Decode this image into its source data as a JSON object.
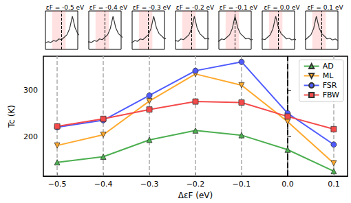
{
  "chart_data": [
    {
      "type": "line",
      "x_label": "ΔεF (eV)",
      "y_label": "Tc (K)",
      "x": [
        -0.5,
        -0.4,
        -0.3,
        -0.2,
        -0.1,
        0.0,
        0.1
      ],
      "series": [
        {
          "name": "AD",
          "color": "#4caf50",
          "marker": "triangle",
          "values": [
            145,
            157,
            193,
            213,
            203,
            172,
            126
          ]
        },
        {
          "name": "ML",
          "color": "#ffa92e",
          "marker": "triangle-down",
          "values": [
            181,
            204,
            276,
            334,
            310,
            232,
            143
          ]
        },
        {
          "name": "FSR",
          "color": "#4f5bff",
          "marker": "circle",
          "values": [
            220,
            235,
            288,
            341,
            360,
            250,
            183
          ]
        },
        {
          "name": "FBW",
          "color": "#f44a4a",
          "marker": "square",
          "values": [
            222,
            238,
            258,
            275,
            273,
            243,
            216
          ]
        }
      ],
      "xlim": [
        -0.53,
        0.13
      ],
      "ylim": [
        115,
        372
      ],
      "xticks": [
        {
          "value": -0.5,
          "label": "−0.5"
        },
        {
          "value": -0.4,
          "label": "−0.4"
        },
        {
          "value": -0.3,
          "label": "−0.3"
        },
        {
          "value": -0.2,
          "label": "−0.2"
        },
        {
          "value": -0.1,
          "label": "−0.1"
        },
        {
          "value": 0.0,
          "label": "0.0"
        },
        0.1
      ],
      "yticks": [
        200,
        300
      ],
      "grid": "x",
      "vline": 0.0,
      "legend": "upper right"
    },
    {
      "type": "line",
      "title": "εF = -0.5 eV",
      "color": "#333333",
      "tick_labels": false,
      "x": [
        -1.1,
        -1.0,
        -0.9,
        -0.8,
        -0.7,
        -0.6,
        -0.5,
        -0.4,
        -0.3,
        -0.2,
        -0.1,
        0.0,
        0.1,
        0.2,
        0.3,
        0.4,
        0.5,
        0.6,
        0.7
      ],
      "values": [
        0.18,
        0.22,
        0.2,
        0.25,
        0.23,
        0.3,
        0.28,
        0.35,
        0.42,
        0.6,
        0.95,
        0.62,
        0.45,
        0.38,
        0.3,
        0.32,
        0.27,
        0.3,
        0.25
      ],
      "xlim": [
        -1.1,
        0.1
      ],
      "ylim": [
        0,
        1.1
      ],
      "vline": -0.5,
      "band": [
        -0.85,
        -0.35
      ]
    },
    {
      "type": "line",
      "title": "εF = -0.4 eV",
      "color": "#333333",
      "tick_labels": false,
      "x": [
        -1.1,
        -1.0,
        -0.9,
        -0.8,
        -0.7,
        -0.6,
        -0.5,
        -0.4,
        -0.3,
        -0.2,
        -0.1,
        0.0,
        0.1,
        0.2,
        0.3,
        0.4,
        0.5,
        0.6,
        0.7
      ],
      "values": [
        0.18,
        0.22,
        0.2,
        0.25,
        0.23,
        0.3,
        0.28,
        0.35,
        0.42,
        0.6,
        0.95,
        0.62,
        0.45,
        0.38,
        0.3,
        0.32,
        0.27,
        0.3,
        0.25
      ],
      "xlim": [
        -1.0,
        0.2
      ],
      "ylim": [
        0,
        1.1
      ],
      "vline": -0.4,
      "band": [
        -0.75,
        -0.25
      ]
    },
    {
      "type": "line",
      "title": "εF = -0.3 eV",
      "color": "#333333",
      "tick_labels": false,
      "x": [
        -1.1,
        -1.0,
        -0.9,
        -0.8,
        -0.7,
        -0.6,
        -0.5,
        -0.4,
        -0.3,
        -0.2,
        -0.1,
        0.0,
        0.1,
        0.2,
        0.3,
        0.4,
        0.5,
        0.6,
        0.7
      ],
      "values": [
        0.18,
        0.22,
        0.2,
        0.25,
        0.23,
        0.3,
        0.28,
        0.35,
        0.42,
        0.6,
        0.95,
        0.62,
        0.45,
        0.38,
        0.3,
        0.32,
        0.27,
        0.3,
        0.25
      ],
      "xlim": [
        -0.9,
        0.3
      ],
      "ylim": [
        0,
        1.1
      ],
      "vline": -0.3,
      "band": [
        -0.65,
        -0.15
      ]
    },
    {
      "type": "line",
      "title": "εF = -0.2 eV",
      "color": "#333333",
      "tick_labels": false,
      "x": [
        -1.1,
        -1.0,
        -0.9,
        -0.8,
        -0.7,
        -0.6,
        -0.5,
        -0.4,
        -0.3,
        -0.2,
        -0.1,
        0.0,
        0.1,
        0.2,
        0.3,
        0.4,
        0.5,
        0.6,
        0.7
      ],
      "values": [
        0.18,
        0.22,
        0.2,
        0.25,
        0.23,
        0.3,
        0.28,
        0.35,
        0.42,
        0.6,
        0.95,
        0.62,
        0.45,
        0.38,
        0.3,
        0.32,
        0.27,
        0.3,
        0.25
      ],
      "xlim": [
        -0.8,
        0.4
      ],
      "ylim": [
        0,
        1.1
      ],
      "vline": -0.2,
      "band": [
        -0.55,
        -0.05
      ]
    },
    {
      "type": "line",
      "title": "εF = -0.1 eV",
      "color": "#333333",
      "tick_labels": false,
      "x": [
        -1.1,
        -1.0,
        -0.9,
        -0.8,
        -0.7,
        -0.6,
        -0.5,
        -0.4,
        -0.3,
        -0.2,
        -0.1,
        0.0,
        0.1,
        0.2,
        0.3,
        0.4,
        0.5,
        0.6,
        0.7
      ],
      "values": [
        0.18,
        0.22,
        0.2,
        0.25,
        0.23,
        0.3,
        0.28,
        0.35,
        0.42,
        0.6,
        0.95,
        0.62,
        0.45,
        0.38,
        0.3,
        0.32,
        0.27,
        0.3,
        0.25
      ],
      "xlim": [
        -0.7,
        0.5
      ],
      "ylim": [
        0,
        1.1
      ],
      "vline": -0.1,
      "band": [
        -0.45,
        0.05
      ]
    },
    {
      "type": "line",
      "title": "εF = 0.0 eV",
      "color": "#333333",
      "tick_labels": false,
      "x": [
        -1.1,
        -1.0,
        -0.9,
        -0.8,
        -0.7,
        -0.6,
        -0.5,
        -0.4,
        -0.3,
        -0.2,
        -0.1,
        0.0,
        0.1,
        0.2,
        0.3,
        0.4,
        0.5,
        0.6,
        0.7
      ],
      "values": [
        0.18,
        0.22,
        0.2,
        0.25,
        0.23,
        0.3,
        0.28,
        0.35,
        0.42,
        0.6,
        0.95,
        0.62,
        0.45,
        0.38,
        0.3,
        0.32,
        0.27,
        0.3,
        0.25
      ],
      "xlim": [
        -0.6,
        0.6
      ],
      "ylim": [
        0,
        1.1
      ],
      "vline": 0.0,
      "band": [
        -0.35,
        0.15
      ]
    },
    {
      "type": "line",
      "title": "εF = 0.1 eV",
      "color": "#333333",
      "tick_labels": false,
      "x": [
        -1.1,
        -1.0,
        -0.9,
        -0.8,
        -0.7,
        -0.6,
        -0.5,
        -0.4,
        -0.3,
        -0.2,
        -0.1,
        0.0,
        0.1,
        0.2,
        0.3,
        0.4,
        0.5,
        0.6,
        0.7
      ],
      "values": [
        0.18,
        0.22,
        0.2,
        0.25,
        0.23,
        0.3,
        0.28,
        0.35,
        0.42,
        0.6,
        0.95,
        0.62,
        0.45,
        0.38,
        0.3,
        0.32,
        0.27,
        0.3,
        0.25
      ],
      "xlim": [
        -0.5,
        0.7
      ],
      "ylim": [
        0,
        1.1
      ],
      "vline": 0.1,
      "band": [
        -0.25,
        0.25
      ]
    }
  ]
}
